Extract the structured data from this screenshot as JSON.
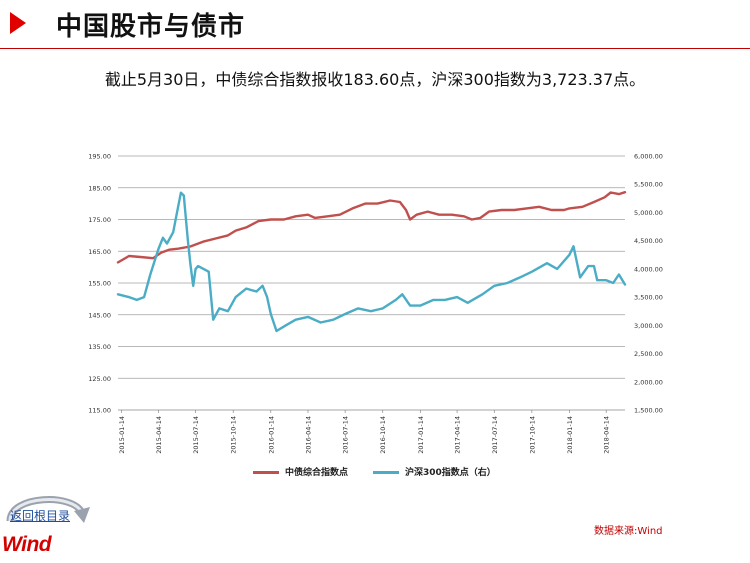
{
  "header": {
    "title": "中国股市与债市"
  },
  "summary": "截止5月30日，中债综合指数报收183.60点，沪深300指数为3,723.37点。",
  "source": "数据来源:Wind",
  "nav": {
    "back_label": "返回根目录"
  },
  "logo": {
    "text": "Wind"
  },
  "colors": {
    "bond": "#c0504d",
    "stock": "#4bacc6",
    "title_arrow": "#e00000",
    "accent": "#c00000"
  },
  "chart_data": {
    "type": "line",
    "x_tick_labels": [
      "2015-01-14",
      "2015-04-14",
      "2015-07-14",
      "2015-10-14",
      "2016-01-14",
      "2016-04-14",
      "2016-07-14",
      "2016-10-14",
      "2017-01-14",
      "2017-04-14",
      "2017-07-14",
      "2017-10-14",
      "2018-01-14",
      "2018-04-14"
    ],
    "x_range": [
      "2015-01-05",
      "2018-05-30"
    ],
    "y_left": {
      "ylim": [
        115,
        195
      ],
      "tick_labels": [
        "115.00",
        "125.00",
        "135.00",
        "145.00",
        "155.00",
        "165.00",
        "175.00",
        "185.00",
        "195.00"
      ]
    },
    "y_right": {
      "ylim": [
        1500,
        6000
      ],
      "tick_labels": [
        "1,500.00",
        "2,000.00",
        "2,500.00",
        "3,000.00",
        "3,500.00",
        "4,000.00",
        "4,500.00",
        "5,000.00",
        "5,500.00",
        "6,000.00"
      ]
    },
    "grid": true,
    "legend": "bottom",
    "series": [
      {
        "name": "中债综合指数点",
        "axis": "left",
        "points": [
          [
            "2015-01-05",
            161.5
          ],
          [
            "2015-02-01",
            163.5
          ],
          [
            "2015-03-01",
            163.2
          ],
          [
            "2015-04-01",
            162.8
          ],
          [
            "2015-04-20",
            164.5
          ],
          [
            "2015-05-10",
            165.5
          ],
          [
            "2015-06-01",
            165.8
          ],
          [
            "2015-07-01",
            166.5
          ],
          [
            "2015-08-01",
            168
          ],
          [
            "2015-09-01",
            169
          ],
          [
            "2015-10-01",
            170
          ],
          [
            "2015-10-20",
            171.5
          ],
          [
            "2015-11-15",
            172.5
          ],
          [
            "2015-12-15",
            174.5
          ],
          [
            "2016-01-14",
            175
          ],
          [
            "2016-02-15",
            175
          ],
          [
            "2016-03-15",
            176
          ],
          [
            "2016-04-14",
            176.5
          ],
          [
            "2016-05-01",
            175.5
          ],
          [
            "2016-06-01",
            176
          ],
          [
            "2016-07-01",
            176.5
          ],
          [
            "2016-08-01",
            178.5
          ],
          [
            "2016-09-01",
            180
          ],
          [
            "2016-10-01",
            180
          ],
          [
            "2016-11-01",
            181
          ],
          [
            "2016-11-25",
            180.5
          ],
          [
            "2016-12-10",
            178
          ],
          [
            "2016-12-20",
            175
          ],
          [
            "2017-01-05",
            176.5
          ],
          [
            "2017-02-01",
            177.5
          ],
          [
            "2017-03-01",
            176.5
          ],
          [
            "2017-04-01",
            176.5
          ],
          [
            "2017-05-01",
            176
          ],
          [
            "2017-05-20",
            175
          ],
          [
            "2017-06-10",
            175.5
          ],
          [
            "2017-07-01",
            177.5
          ],
          [
            "2017-08-01",
            178
          ],
          [
            "2017-09-01",
            178
          ],
          [
            "2017-10-01",
            178.5
          ],
          [
            "2017-11-01",
            179
          ],
          [
            "2017-12-01",
            178
          ],
          [
            "2018-01-01",
            178
          ],
          [
            "2018-01-14",
            178.5
          ],
          [
            "2018-02-15",
            179
          ],
          [
            "2018-03-15",
            180.5
          ],
          [
            "2018-04-10",
            182
          ],
          [
            "2018-04-25",
            183.5
          ],
          [
            "2018-05-15",
            183
          ],
          [
            "2018-05-30",
            183.6
          ]
        ]
      },
      {
        "name": "沪深300指数点（右）",
        "axis": "right",
        "points": [
          [
            "2015-01-05",
            3550
          ],
          [
            "2015-02-01",
            3500
          ],
          [
            "2015-02-20",
            3450
          ],
          [
            "2015-03-10",
            3500
          ],
          [
            "2015-03-25",
            3900
          ],
          [
            "2015-04-14",
            4350
          ],
          [
            "2015-04-25",
            4550
          ],
          [
            "2015-05-05",
            4450
          ],
          [
            "2015-05-20",
            4650
          ],
          [
            "2015-06-01",
            5100
          ],
          [
            "2015-06-08",
            5350
          ],
          [
            "2015-06-15",
            5300
          ],
          [
            "2015-06-25",
            4500
          ],
          [
            "2015-07-01",
            4100
          ],
          [
            "2015-07-08",
            3700
          ],
          [
            "2015-07-14",
            4000
          ],
          [
            "2015-07-20",
            4050
          ],
          [
            "2015-08-15",
            3950
          ],
          [
            "2015-08-26",
            3100
          ],
          [
            "2015-09-10",
            3300
          ],
          [
            "2015-10-01",
            3250
          ],
          [
            "2015-10-20",
            3500
          ],
          [
            "2015-11-15",
            3650
          ],
          [
            "2015-12-10",
            3600
          ],
          [
            "2015-12-25",
            3700
          ],
          [
            "2016-01-05",
            3500
          ],
          [
            "2016-01-14",
            3200
          ],
          [
            "2016-01-28",
            2900
          ],
          [
            "2016-02-20",
            3000
          ],
          [
            "2016-03-15",
            3100
          ],
          [
            "2016-04-14",
            3150
          ],
          [
            "2016-05-15",
            3050
          ],
          [
            "2016-06-15",
            3100
          ],
          [
            "2016-07-14",
            3200
          ],
          [
            "2016-08-15",
            3300
          ],
          [
            "2016-09-15",
            3250
          ],
          [
            "2016-10-14",
            3300
          ],
          [
            "2016-11-15",
            3450
          ],
          [
            "2016-12-01",
            3550
          ],
          [
            "2016-12-20",
            3350
          ],
          [
            "2017-01-14",
            3350
          ],
          [
            "2017-02-15",
            3450
          ],
          [
            "2017-03-15",
            3450
          ],
          [
            "2017-04-14",
            3500
          ],
          [
            "2017-05-10",
            3400
          ],
          [
            "2017-06-15",
            3550
          ],
          [
            "2017-07-14",
            3700
          ],
          [
            "2017-08-15",
            3750
          ],
          [
            "2017-09-15",
            3850
          ],
          [
            "2017-10-14",
            3950
          ],
          [
            "2017-11-20",
            4100
          ],
          [
            "2017-12-15",
            4000
          ],
          [
            "2018-01-14",
            4250
          ],
          [
            "2018-01-24",
            4400
          ],
          [
            "2018-02-09",
            3850
          ],
          [
            "2018-03-01",
            4050
          ],
          [
            "2018-03-15",
            4050
          ],
          [
            "2018-03-23",
            3800
          ],
          [
            "2018-04-14",
            3800
          ],
          [
            "2018-05-01",
            3750
          ],
          [
            "2018-05-15",
            3900
          ],
          [
            "2018-05-30",
            3723.37
          ]
        ]
      }
    ]
  }
}
